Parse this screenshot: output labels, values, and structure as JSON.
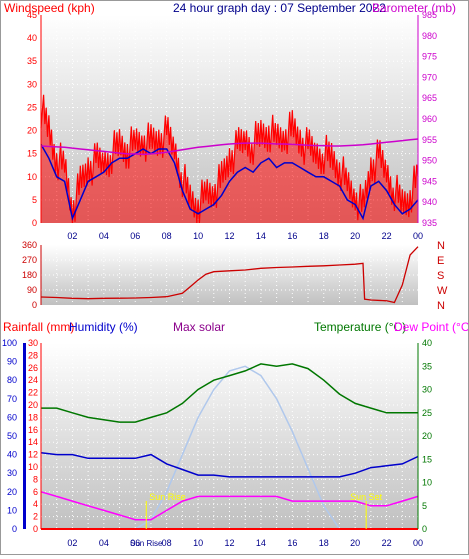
{
  "colors": {
    "wind": "#ff0000",
    "gust_fill": "#ff0000",
    "avg": "#0000cc",
    "baro": "#cc00cc",
    "dir": "#cc0000",
    "rain": "#ff0000",
    "humidity": "#0000cc",
    "solar": "#b0c8ec",
    "temp": "#007700",
    "dew": "#ff00ff",
    "sunmark": "#ffff00",
    "title": "#00008b",
    "grid": "#ffffff"
  },
  "chart_data": [
    {
      "type": "line",
      "title": "24 hour graph day : 07 September 2022",
      "ylabel": "Windspeed (kph)",
      "y2label": "Barometer (mb)",
      "ylim": [
        0,
        45
      ],
      "y2lim": [
        935,
        985
      ],
      "y_ticks": [
        0,
        5,
        10,
        15,
        20,
        25,
        30,
        35,
        40,
        45
      ],
      "y2_ticks": [
        935,
        940,
        945,
        950,
        955,
        960,
        965,
        970,
        975,
        980,
        985
      ],
      "x_ticks": [
        "02",
        "04",
        "06",
        "08",
        "10",
        "12",
        "14",
        "16",
        "18",
        "20",
        "22",
        "00"
      ],
      "x_hours": [
        0,
        0.5,
        1,
        1.5,
        2,
        2.5,
        3,
        3.5,
        4,
        4.5,
        5,
        5.5,
        6,
        6.5,
        7,
        7.5,
        8,
        8.5,
        9,
        9.5,
        10,
        10.5,
        11,
        11.5,
        12,
        12.5,
        13,
        13.5,
        14,
        14.5,
        15,
        15.5,
        16,
        16.5,
        17,
        17.5,
        18,
        18.5,
        19,
        19.5,
        20,
        20.5,
        21,
        21.5,
        22,
        22.5,
        23,
        23.5,
        24
      ],
      "series": [
        {
          "values": [
            25,
            20,
            14,
            12,
            3,
            8,
            12,
            13,
            13,
            15,
            17,
            16,
            17,
            18,
            17,
            18,
            19,
            16,
            10,
            5,
            4,
            6,
            7,
            9,
            14,
            16,
            18,
            17,
            19,
            20,
            18,
            19,
            20,
            18,
            16,
            15,
            15,
            14,
            12,
            8,
            6,
            3,
            12,
            14,
            11,
            7,
            4,
            6,
            10
          ]
        },
        {
          "values": [
            17,
            14,
            10,
            9,
            1,
            5,
            9,
            10,
            11,
            13,
            14,
            14,
            15,
            16,
            15,
            16,
            16,
            13,
            7,
            3,
            2,
            3,
            4,
            6,
            9,
            11,
            12,
            11,
            13,
            14,
            12,
            13,
            13,
            12,
            11,
            10,
            10,
            9,
            8,
            5,
            4,
            1,
            8,
            9,
            7,
            4,
            2,
            3,
            5
          ]
        },
        {
          "values": [
            953.5,
            953.4,
            953.3,
            953.2,
            953.0,
            952.8,
            952.6,
            952.4,
            952.2,
            952.0,
            951.8,
            951.6,
            951.6,
            951.5,
            951.6,
            951.8,
            952.0,
            952.3,
            952.6,
            952.9,
            953.2,
            953.4,
            953.6,
            953.8,
            954.0,
            954.1,
            954.2,
            954.2,
            954.2,
            954.1,
            954.0,
            954.0,
            953.9,
            953.8,
            953.7,
            953.6,
            953.6,
            953.5,
            953.5,
            953.6,
            953.7,
            953.8,
            954.0,
            954.2,
            954.4,
            954.6,
            954.8,
            955.0,
            955.2
          ]
        }
      ]
    },
    {
      "type": "line",
      "y_ticks": [
        0,
        90,
        180,
        270,
        360
      ],
      "ylim": [
        0,
        360
      ],
      "y2_ticks": [
        "N",
        "W",
        "S",
        "E",
        "N"
      ],
      "x_hours": [
        0,
        1,
        2,
        3,
        4,
        5,
        6,
        7,
        8,
        9,
        9.5,
        10,
        10.5,
        11,
        12,
        13,
        14,
        15,
        16,
        17,
        18,
        19,
        20,
        20.5,
        20.6,
        21,
        22,
        22.5,
        23,
        23.5,
        24
      ],
      "series": [
        {
          "values": [
            48,
            45,
            40,
            38,
            40,
            41,
            42,
            45,
            50,
            70,
            110,
            150,
            185,
            200,
            205,
            210,
            220,
            225,
            228,
            232,
            235,
            240,
            245,
            250,
            35,
            30,
            25,
            15,
            120,
            300,
            350
          ]
        }
      ]
    },
    {
      "type": "line",
      "ylabel": "Rainfall (mm)",
      "ylabel2": "Humidity (%)",
      "ylabel3": "Max solar",
      "y2label": "Temperature (°C)",
      "y2label2": "Dew Point (°C)",
      "humidity_ticks": [
        0,
        10,
        20,
        30,
        40,
        50,
        60,
        70,
        80,
        90,
        100
      ],
      "rain_ticks": [
        0,
        2,
        4,
        6,
        8,
        10,
        12,
        14,
        16,
        18,
        20,
        22,
        24,
        26,
        28,
        30
      ],
      "temp_ticks": [
        0,
        5,
        10,
        15,
        20,
        25,
        30,
        35,
        40
      ],
      "x_ticks": [
        "02",
        "04",
        "06",
        "08",
        "10",
        "12",
        "14",
        "16",
        "18",
        "20",
        "22",
        "00"
      ],
      "sun_rise_label": "Sun Rise",
      "sun_rise_tick": "Sun Rise",
      "sun_set_label": "Sun Set",
      "sun_rise_hour": 6.7,
      "sun_set_hour": 19.3,
      "x_hours": [
        0,
        1,
        2,
        3,
        4,
        5,
        6,
        7,
        8,
        9,
        10,
        11,
        12,
        13,
        14,
        15,
        16,
        17,
        18,
        19,
        20,
        21,
        22,
        23,
        24
      ],
      "series": [
        {
          "values": [
            26,
            26,
            25,
            24,
            23.5,
            23,
            23,
            24,
            25,
            27,
            30,
            32,
            33,
            34,
            35.5,
            35,
            35.5,
            34.5,
            32,
            29,
            27,
            26,
            25,
            25,
            25
          ]
        },
        {
          "values": [
            8,
            7,
            6,
            5,
            4,
            3,
            2,
            2,
            4,
            6,
            7,
            7,
            7,
            7,
            7,
            7,
            6,
            6,
            6,
            6,
            6,
            5,
            5,
            6,
            7
          ]
        },
        {
          "values": [
            41,
            40,
            40,
            38,
            38,
            38,
            38,
            40,
            35,
            32,
            29,
            29,
            28,
            28,
            28,
            28,
            28,
            28,
            28,
            28,
            30,
            33,
            34,
            35,
            39
          ]
        },
        {
          "values": [
            0,
            0,
            0,
            0,
            0,
            0,
            0,
            2,
            8,
            16,
            24,
            30,
            34,
            35,
            33,
            28,
            21,
            13,
            5,
            0,
            0,
            0,
            0,
            0,
            0
          ]
        },
        {
          "values": [
            0,
            0,
            0,
            0,
            0,
            0,
            0,
            0,
            0,
            0,
            0,
            0,
            0,
            0,
            0,
            0,
            0,
            0,
            0,
            0,
            0,
            0,
            0,
            0,
            0
          ]
        }
      ]
    }
  ]
}
